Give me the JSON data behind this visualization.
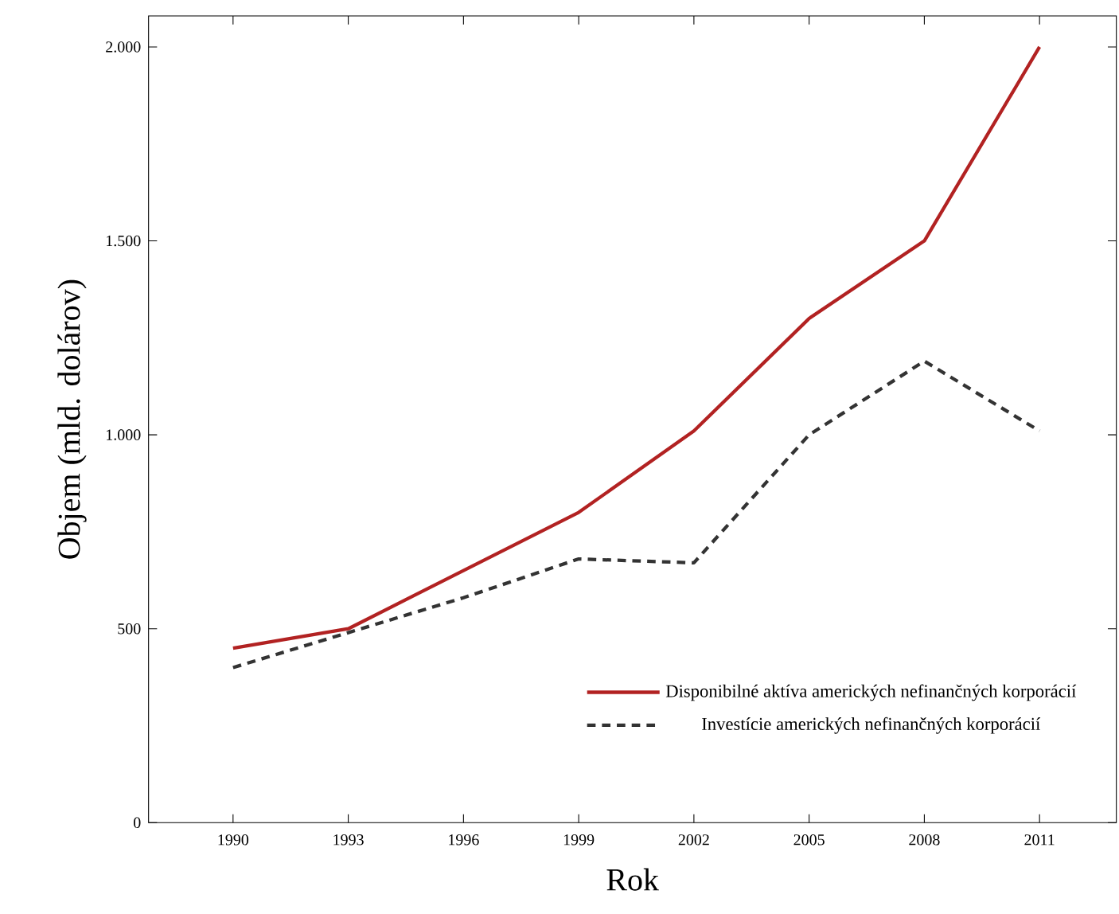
{
  "chart_data": {
    "type": "line",
    "xlabel": "Rok",
    "ylabel": "Objem (mld. dolárov)",
    "x": [
      1990,
      1993,
      1996,
      1999,
      2002,
      2005,
      2008,
      2011
    ],
    "series": [
      {
        "name": "Disponibilné aktíva amerických nefinančných korporácií",
        "color": "#b22222",
        "line_style": "solid",
        "values": [
          450,
          500,
          650,
          800,
          1010,
          1300,
          1500,
          2000
        ]
      },
      {
        "name": "Investície amerických nefinančných korporácií",
        "color": "#333333",
        "line_style": "dashed",
        "values": [
          400,
          490,
          580,
          680,
          670,
          1000,
          1190,
          1010
        ]
      }
    ],
    "xlim": [
      1987.8,
      2013
    ],
    "ylim": [
      0,
      2080
    ],
    "xticks": [
      1990,
      1993,
      1996,
      1999,
      2002,
      2005,
      2008,
      2011
    ],
    "yticks": [
      0,
      500,
      {
        "value": 1000,
        "label": "1.000"
      },
      {
        "value": 1500,
        "label": "1.500"
      },
      {
        "value": 2000,
        "label": "2.000"
      }
    ],
    "legend": "bottom right"
  }
}
